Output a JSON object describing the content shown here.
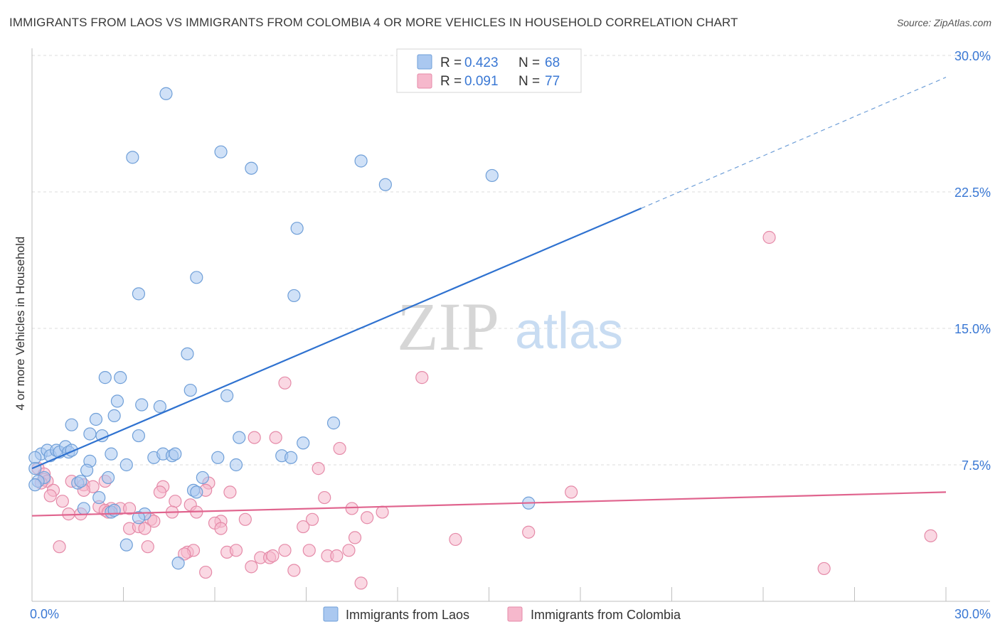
{
  "title": "IMMIGRANTS FROM LAOS VS IMMIGRANTS FROM COLOMBIA 4 OR MORE VEHICLES IN HOUSEHOLD CORRELATION CHART",
  "source": "Source: ZipAtlas.com",
  "watermark": {
    "zip": "ZIP",
    "atlas": "atlas"
  },
  "colors": {
    "laos_fill": "#aac8f0",
    "laos_stroke": "#6f9fd8",
    "laos_line": "#2f72d0",
    "colombia_fill": "#f6b8cc",
    "colombia_stroke": "#e58aa8",
    "colombia_line": "#e0648e",
    "value_text": "#3a78d4",
    "grid": "#dcdcdc"
  },
  "legend": {
    "laos": {
      "r_label": "R =",
      "r_value": "0.423",
      "n_label": "N =",
      "n_value": "68"
    },
    "colombia": {
      "r_label": "R =",
      "r_value": "0.091",
      "n_label": "N =",
      "n_value": "77"
    }
  },
  "chart_data": {
    "type": "scatter",
    "title": "IMMIGRANTS FROM LAOS VS IMMIGRANTS FROM COLOMBIA 4 OR MORE VEHICLES IN HOUSEHOLD CORRELATION CHART",
    "xlabel": "",
    "ylabel": "4 or more Vehicles in Household",
    "xlim": [
      0,
      30
    ],
    "ylim": [
      0,
      30
    ],
    "x_tick_labels": [
      {
        "value": 0,
        "label": "0.0%"
      },
      {
        "value": 30,
        "label": "30.0%"
      }
    ],
    "y_tick_labels": [
      {
        "value": 7.5,
        "label": "7.5%"
      },
      {
        "value": 15,
        "label": "15.0%"
      },
      {
        "value": 22.5,
        "label": "22.5%"
      },
      {
        "value": 30,
        "label": "30.0%"
      }
    ],
    "grid": true,
    "series": [
      {
        "name": "Immigrants from Laos",
        "key": "laos",
        "R": 0.423,
        "N": 68,
        "trend": {
          "x0": 0,
          "y0": 7.3,
          "x1": 20,
          "y1": 21.6,
          "dash_x1": 30,
          "dash_y1": 28.8
        },
        "points": [
          [
            4.4,
            27.9
          ],
          [
            3.3,
            24.4
          ],
          [
            6.2,
            24.7
          ],
          [
            7.2,
            23.8
          ],
          [
            10.8,
            24.2
          ],
          [
            11.6,
            22.9
          ],
          [
            15.1,
            23.4
          ],
          [
            8.7,
            20.5
          ],
          [
            5.4,
            17.8
          ],
          [
            3.5,
            16.9
          ],
          [
            8.6,
            16.8
          ],
          [
            5.1,
            13.6
          ],
          [
            2.4,
            12.3
          ],
          [
            2.9,
            12.3
          ],
          [
            5.2,
            11.6
          ],
          [
            6.4,
            11.3
          ],
          [
            2.8,
            11.0
          ],
          [
            3.6,
            10.8
          ],
          [
            4.2,
            10.7
          ],
          [
            2.7,
            10.2
          ],
          [
            2.1,
            10.0
          ],
          [
            9.9,
            9.8
          ],
          [
            1.3,
            9.7
          ],
          [
            1.9,
            9.2
          ],
          [
            2.3,
            9.1
          ],
          [
            3.5,
            9.1
          ],
          [
            6.8,
            9.0
          ],
          [
            8.9,
            8.7
          ],
          [
            0.3,
            8.1
          ],
          [
            0.5,
            8.3
          ],
          [
            0.6,
            8.0
          ],
          [
            0.8,
            8.3
          ],
          [
            0.9,
            8.2
          ],
          [
            1.1,
            8.5
          ],
          [
            1.2,
            8.2
          ],
          [
            1.3,
            8.3
          ],
          [
            2.6,
            8.1
          ],
          [
            4.0,
            7.9
          ],
          [
            4.3,
            8.1
          ],
          [
            4.6,
            8.0
          ],
          [
            4.7,
            8.1
          ],
          [
            6.1,
            7.9
          ],
          [
            8.2,
            8.0
          ],
          [
            8.5,
            7.9
          ],
          [
            0.1,
            7.9
          ],
          [
            1.9,
            7.7
          ],
          [
            3.1,
            7.5
          ],
          [
            6.7,
            7.5
          ],
          [
            1.8,
            7.2
          ],
          [
            0.1,
            7.3
          ],
          [
            0.4,
            6.8
          ],
          [
            2.5,
            6.8
          ],
          [
            5.6,
            6.8
          ],
          [
            1.5,
            6.5
          ],
          [
            1.6,
            6.6
          ],
          [
            0.2,
            6.6
          ],
          [
            0.1,
            6.4
          ],
          [
            5.3,
            6.1
          ],
          [
            5.4,
            6.0
          ],
          [
            2.2,
            5.7
          ],
          [
            16.3,
            5.4
          ],
          [
            1.7,
            5.1
          ],
          [
            2.6,
            4.9
          ],
          [
            3.7,
            4.8
          ],
          [
            3.5,
            4.6
          ],
          [
            3.1,
            3.1
          ],
          [
            4.8,
            2.1
          ],
          [
            2.7,
            5.0
          ]
        ]
      },
      {
        "name": "Immigrants from Colombia",
        "key": "colombia",
        "R": 0.091,
        "N": 77,
        "trend": {
          "x0": 0,
          "y0": 4.7,
          "x1": 30,
          "y1": 6.0
        },
        "points": [
          [
            24.2,
            20.0
          ],
          [
            12.8,
            12.3
          ],
          [
            8.3,
            12.0
          ],
          [
            8.0,
            9.0
          ],
          [
            7.3,
            9.0
          ],
          [
            10.1,
            8.4
          ],
          [
            9.4,
            7.3
          ],
          [
            0.2,
            7.3
          ],
          [
            0.4,
            7.0
          ],
          [
            0.4,
            6.7
          ],
          [
            0.5,
            6.6
          ],
          [
            0.3,
            6.5
          ],
          [
            2.4,
            6.6
          ],
          [
            1.3,
            6.6
          ],
          [
            1.7,
            6.4
          ],
          [
            2.0,
            6.3
          ],
          [
            0.7,
            6.1
          ],
          [
            1.7,
            6.1
          ],
          [
            4.3,
            6.3
          ],
          [
            5.8,
            6.5
          ],
          [
            5.7,
            6.1
          ],
          [
            6.5,
            6.0
          ],
          [
            4.2,
            6.0
          ],
          [
            17.7,
            6.0
          ],
          [
            0.6,
            5.8
          ],
          [
            9.6,
            5.7
          ],
          [
            1.0,
            5.5
          ],
          [
            4.7,
            5.5
          ],
          [
            5.2,
            5.3
          ],
          [
            2.2,
            5.2
          ],
          [
            2.6,
            5.1
          ],
          [
            2.9,
            5.1
          ],
          [
            3.2,
            5.1
          ],
          [
            10.5,
            5.1
          ],
          [
            2.4,
            5.0
          ],
          [
            2.5,
            4.9
          ],
          [
            5.4,
            4.9
          ],
          [
            1.2,
            4.8
          ],
          [
            1.6,
            4.8
          ],
          [
            4.6,
            4.9
          ],
          [
            11.5,
            4.9
          ],
          [
            6.2,
            4.4
          ],
          [
            7.0,
            4.5
          ],
          [
            3.9,
            4.5
          ],
          [
            4.0,
            4.4
          ],
          [
            11.0,
            4.6
          ],
          [
            6.0,
            4.3
          ],
          [
            9.2,
            4.5
          ],
          [
            8.9,
            4.1
          ],
          [
            3.2,
            4.0
          ],
          [
            3.5,
            4.1
          ],
          [
            3.7,
            4.0
          ],
          [
            6.2,
            4.0
          ],
          [
            16.3,
            3.8
          ],
          [
            10.6,
            3.5
          ],
          [
            13.9,
            3.4
          ],
          [
            29.5,
            3.6
          ],
          [
            0.9,
            3.0
          ],
          [
            3.8,
            3.0
          ],
          [
            5.1,
            2.7
          ],
          [
            5.3,
            2.8
          ],
          [
            5.0,
            2.6
          ],
          [
            6.4,
            2.7
          ],
          [
            6.7,
            2.8
          ],
          [
            8.3,
            2.8
          ],
          [
            9.1,
            2.8
          ],
          [
            7.5,
            2.4
          ],
          [
            7.8,
            2.4
          ],
          [
            7.9,
            2.5
          ],
          [
            9.7,
            2.5
          ],
          [
            10.0,
            2.5
          ],
          [
            10.4,
            2.8
          ],
          [
            7.2,
            1.9
          ],
          [
            8.6,
            1.7
          ],
          [
            5.7,
            1.6
          ],
          [
            10.8,
            1.0
          ],
          [
            26.0,
            1.8
          ]
        ]
      }
    ]
  }
}
